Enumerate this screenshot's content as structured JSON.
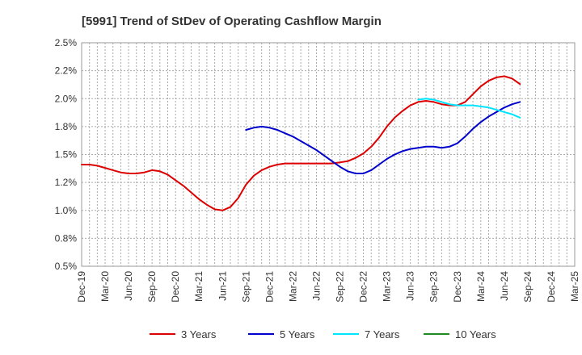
{
  "chart_data": {
    "type": "line",
    "title": "[5991]  Trend of StDev of Operating Cashflow Margin",
    "xlabel": "",
    "ylabel": "",
    "ylim": [
      0.5,
      2.5
    ],
    "y_ticks": [
      "0.5%",
      "0.8%",
      "1.0%",
      "1.2%",
      "1.5%",
      "1.8%",
      "2.0%",
      "2.2%",
      "2.5%"
    ],
    "x_ticks": [
      "Dec-19",
      "Mar-20",
      "Jun-20",
      "Sep-20",
      "Dec-20",
      "Mar-21",
      "Jun-21",
      "Sep-21",
      "Dec-21",
      "Mar-22",
      "Jun-22",
      "Sep-22",
      "Dec-22",
      "Mar-23",
      "Jun-23",
      "Sep-23",
      "Dec-23",
      "Mar-24",
      "Jun-24",
      "Sep-24",
      "Dec-24",
      "Mar-25"
    ],
    "grid": true,
    "legend_position": "bottom",
    "series": [
      {
        "name": "3 Years",
        "color": "#dd0000",
        "values": [
          1.41,
          1.41,
          1.4,
          1.38,
          1.36,
          1.34,
          1.33,
          1.33,
          1.34,
          1.36,
          1.35,
          1.32,
          1.27,
          1.22,
          1.16,
          1.1,
          1.05,
          1.01,
          1.0,
          1.03,
          1.11,
          1.23,
          1.31,
          1.36,
          1.39,
          1.41,
          1.42,
          1.42,
          1.42,
          1.42,
          1.42,
          1.42,
          1.42,
          1.43,
          1.44,
          1.47,
          1.51,
          1.57,
          1.65,
          1.75,
          1.83,
          1.89,
          1.94,
          1.97,
          1.98,
          1.97,
          1.95,
          1.94,
          1.94,
          1.97,
          2.04,
          2.11,
          2.16,
          2.19,
          2.2,
          2.18,
          2.13
        ]
      },
      {
        "name": "5 Years",
        "color": "#0000cc",
        "values": [
          null,
          null,
          null,
          null,
          null,
          null,
          null,
          null,
          null,
          null,
          null,
          null,
          null,
          null,
          null,
          null,
          null,
          null,
          null,
          null,
          null,
          1.72,
          1.74,
          1.75,
          1.74,
          1.72,
          1.69,
          1.66,
          1.62,
          1.58,
          1.54,
          1.49,
          1.44,
          1.39,
          1.35,
          1.33,
          1.33,
          1.36,
          1.41,
          1.46,
          1.5,
          1.53,
          1.55,
          1.56,
          1.57,
          1.57,
          1.56,
          1.57,
          1.6,
          1.66,
          1.73,
          1.79,
          1.84,
          1.88,
          1.92,
          1.95,
          1.97
        ]
      },
      {
        "name": "7 Years",
        "color": "#00e5ff",
        "values": [
          null,
          null,
          null,
          null,
          null,
          null,
          null,
          null,
          null,
          null,
          null,
          null,
          null,
          null,
          null,
          null,
          null,
          null,
          null,
          null,
          null,
          null,
          null,
          null,
          null,
          null,
          null,
          null,
          null,
          null,
          null,
          null,
          null,
          null,
          null,
          null,
          null,
          null,
          null,
          null,
          null,
          null,
          null,
          1.99,
          2.0,
          1.99,
          1.97,
          1.95,
          1.94,
          1.94,
          1.94,
          1.93,
          1.92,
          1.9,
          1.88,
          1.86,
          1.83
        ]
      },
      {
        "name": "10 Years",
        "color": "#228822",
        "values": []
      }
    ]
  }
}
